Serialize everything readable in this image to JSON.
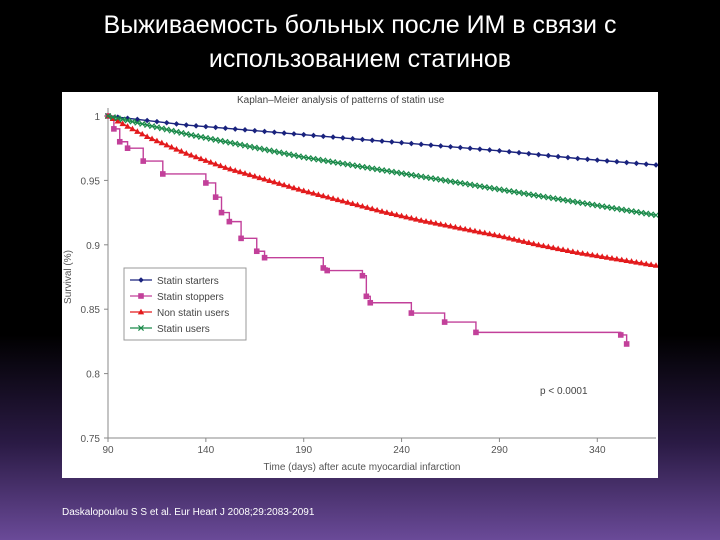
{
  "slide": {
    "title_line1": "Выживаемость больных после ИМ в связи с",
    "title_line2": "использованием статинов",
    "citation": "Daskalopoulou S S et al. Eur Heart J 2008;29:2083-2091"
  },
  "chart_data": {
    "type": "line",
    "title": "Kaplan–Meier analysis of patterns of statin use",
    "xlabel": "Time (days) after acute myocardial infarction",
    "ylabel": "Survival (%)",
    "xlim": [
      90,
      370
    ],
    "ylim": [
      0.75,
      1.0
    ],
    "xticks": [
      "90",
      "140",
      "190",
      "240",
      "290",
      "340"
    ],
    "yticks": [
      "0.75",
      "0.8",
      "0.85",
      "0.9",
      "0.95",
      "1"
    ],
    "annotation": "p < 0.0001",
    "grid": false,
    "legend_position": "left-middle",
    "series": [
      {
        "name": "Statin starters",
        "color": "#1a237e",
        "marker": "diamond",
        "step": false,
        "x": [
          90,
          130,
          170,
          210,
          250,
          290,
          330,
          370
        ],
        "y": [
          1.0,
          0.993,
          0.988,
          0.983,
          0.978,
          0.973,
          0.967,
          0.962
        ]
      },
      {
        "name": "Statin stoppers",
        "color": "#c2409a",
        "marker": "square",
        "step": true,
        "x": [
          90,
          93,
          96,
          100,
          108,
          118,
          140,
          145,
          148,
          152,
          158,
          166,
          170,
          200,
          202,
          220,
          222,
          224,
          245,
          262,
          278,
          352,
          355
        ],
        "y": [
          1.0,
          0.99,
          0.98,
          0.975,
          0.965,
          0.955,
          0.948,
          0.937,
          0.925,
          0.918,
          0.905,
          0.895,
          0.89,
          0.882,
          0.88,
          0.876,
          0.86,
          0.855,
          0.847,
          0.84,
          0.832,
          0.83,
          0.823
        ]
      },
      {
        "name": "Non statin users",
        "color": "#e31a1c",
        "marker": "triangle",
        "step": false,
        "x": [
          90,
          110,
          130,
          150,
          170,
          190,
          210,
          230,
          250,
          270,
          290,
          310,
          330,
          350,
          370
        ],
        "y": [
          1.0,
          0.984,
          0.971,
          0.96,
          0.951,
          0.942,
          0.934,
          0.926,
          0.919,
          0.913,
          0.907,
          0.9,
          0.894,
          0.889,
          0.884
        ]
      },
      {
        "name": "Statin users",
        "color": "#1b8a4a",
        "marker": "x",
        "step": false,
        "x": [
          90,
          110,
          130,
          150,
          170,
          190,
          210,
          230,
          250,
          270,
          290,
          310,
          330,
          350,
          370
        ],
        "y": [
          1.0,
          0.993,
          0.986,
          0.98,
          0.974,
          0.968,
          0.963,
          0.958,
          0.953,
          0.948,
          0.943,
          0.938,
          0.933,
          0.928,
          0.923
        ]
      }
    ]
  }
}
